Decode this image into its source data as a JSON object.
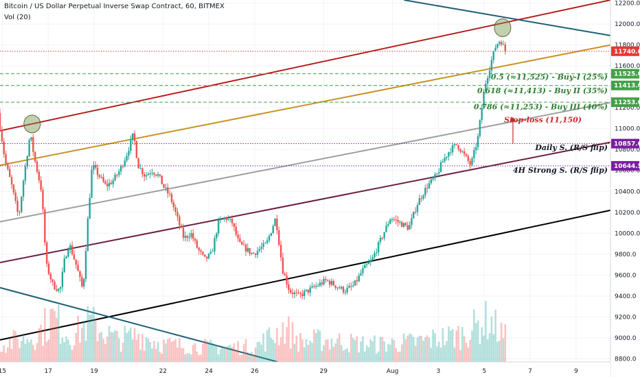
{
  "header": {
    "title": "Bitcoin / US Dollar Perpetual Inverse Swap Contract, 60, BITMEX",
    "volume_label": "Vol (20)"
  },
  "chart_data": {
    "type": "candlestick",
    "y_axis": {
      "range": [
        8770,
        12230
      ],
      "ticks": [
        12200,
        12000,
        11800,
        11600,
        11400,
        11200,
        11000,
        10800,
        10600,
        10400,
        10200,
        10000,
        9800,
        9600,
        9400,
        9200,
        9000,
        8800
      ],
      "tick_labels": [
        "12200.0",
        "12000.0",
        "11800.0",
        "11600.0",
        "11400.0",
        "11200.0",
        "11000.0",
        "10800.0",
        "10600.0",
        "10400.0",
        "10200.0",
        "10000.0",
        "9800.0",
        "9600.0",
        "9400.0",
        "9200.0",
        "9000.0",
        "8800.0"
      ]
    },
    "x_axis": {
      "range": [
        14.9,
        41.5
      ],
      "ticks": [
        {
          "t": 15,
          "label": "15"
        },
        {
          "t": 17,
          "label": "17"
        },
        {
          "t": 19,
          "label": "19"
        },
        {
          "t": 22,
          "label": "22"
        },
        {
          "t": 24,
          "label": "24"
        },
        {
          "t": 26,
          "label": "26"
        },
        {
          "t": 29,
          "label": "29"
        },
        {
          "t": 32,
          "label": "Aug"
        },
        {
          "t": 34,
          "label": "3"
        },
        {
          "t": 36,
          "label": "5"
        },
        {
          "t": 38,
          "label": "7"
        },
        {
          "t": 40,
          "label": "9"
        }
      ]
    },
    "price_path": [
      [
        14.9,
        11150
      ],
      [
        15.2,
        10700
      ],
      [
        15.5,
        10450
      ],
      [
        15.8,
        10150
      ],
      [
        16.0,
        10500
      ],
      [
        16.3,
        10950
      ],
      [
        16.5,
        10700
      ],
      [
        16.8,
        10400
      ],
      [
        17.0,
        9700
      ],
      [
        17.3,
        9500
      ],
      [
        17.6,
        9450
      ],
      [
        17.8,
        9750
      ],
      [
        18.0,
        9900
      ],
      [
        18.3,
        9700
      ],
      [
        18.6,
        9450
      ],
      [
        18.8,
        10100
      ],
      [
        19.0,
        10650
      ],
      [
        19.3,
        10550
      ],
      [
        19.6,
        10450
      ],
      [
        19.9,
        10500
      ],
      [
        20.2,
        10600
      ],
      [
        20.5,
        10750
      ],
      [
        20.8,
        10950
      ],
      [
        21.0,
        10650
      ],
      [
        21.3,
        10550
      ],
      [
        21.6,
        10600
      ],
      [
        21.9,
        10550
      ],
      [
        22.1,
        10450
      ],
      [
        22.4,
        10350
      ],
      [
        22.7,
        10150
      ],
      [
        23.0,
        9950
      ],
      [
        23.3,
        10000
      ],
      [
        23.6,
        9850
      ],
      [
        23.9,
        9750
      ],
      [
        24.2,
        9800
      ],
      [
        24.5,
        10100
      ],
      [
        24.8,
        10150
      ],
      [
        25.1,
        10100
      ],
      [
        25.4,
        9900
      ],
      [
        25.7,
        9850
      ],
      [
        26.0,
        9800
      ],
      [
        26.3,
        9850
      ],
      [
        26.6,
        9900
      ],
      [
        27.0,
        10150
      ],
      [
        27.3,
        9650
      ],
      [
        27.6,
        9450
      ],
      [
        28.0,
        9400
      ],
      [
        28.4,
        9450
      ],
      [
        28.8,
        9500
      ],
      [
        29.2,
        9550
      ],
      [
        29.6,
        9500
      ],
      [
        30.0,
        9450
      ],
      [
        30.4,
        9500
      ],
      [
        30.8,
        9650
      ],
      [
        31.2,
        9750
      ],
      [
        31.6,
        9950
      ],
      [
        32.0,
        10150
      ],
      [
        32.4,
        10100
      ],
      [
        32.8,
        10050
      ],
      [
        33.2,
        10300
      ],
      [
        33.6,
        10450
      ],
      [
        34.0,
        10550
      ],
      [
        34.3,
        10700
      ],
      [
        34.6,
        10800
      ],
      [
        34.9,
        10850
      ],
      [
        35.2,
        10750
      ],
      [
        35.5,
        10650
      ],
      [
        35.8,
        10900
      ],
      [
        36.1,
        11400
      ],
      [
        36.4,
        11650
      ],
      [
        36.6,
        11800
      ],
      [
        36.8,
        11850
      ],
      [
        37.0,
        11740
      ]
    ],
    "volume_profile": [
      [
        14.9,
        0.35
      ],
      [
        16.5,
        0.55
      ],
      [
        17.2,
        0.9
      ],
      [
        18.0,
        0.5
      ],
      [
        18.8,
        0.8
      ],
      [
        20.0,
        0.45
      ],
      [
        21.0,
        0.55
      ],
      [
        22.0,
        0.35
      ],
      [
        24.0,
        0.3
      ],
      [
        26.0,
        0.3
      ],
      [
        27.3,
        0.7
      ],
      [
        28.0,
        0.4
      ],
      [
        29.0,
        0.45
      ],
      [
        31.0,
        0.35
      ],
      [
        33.0,
        0.4
      ],
      [
        35.0,
        0.55
      ],
      [
        36.2,
        0.85
      ],
      [
        37.0,
        0.45
      ]
    ],
    "trend_lines": [
      {
        "color": "#b71c1c",
        "points": [
          [
            14.9,
            10980
          ],
          [
            41.5,
            12230
          ]
        ]
      },
      {
        "color": "#c99220",
        "points": [
          [
            14.9,
            10650
          ],
          [
            41.5,
            11800
          ]
        ]
      },
      {
        "color": "#9e9e9e",
        "points": [
          [
            14.9,
            10110
          ],
          [
            41.5,
            11250
          ]
        ]
      },
      {
        "color": "#6b1d3e",
        "points": [
          [
            14.9,
            9720
          ],
          [
            41.5,
            10870
          ]
        ]
      },
      {
        "color": "#000000",
        "points": [
          [
            14.9,
            8980
          ],
          [
            41.5,
            10220
          ]
        ]
      },
      {
        "color": "#1f5f74",
        "points": [
          [
            14.9,
            9480
          ],
          [
            27.0,
            8770
          ]
        ]
      },
      {
        "color": "#1f5f74",
        "points": [
          [
            32.5,
            12230
          ],
          [
            41.5,
            11890
          ]
        ]
      }
    ],
    "levels": [
      {
        "value": 11740,
        "label": "11740.0",
        "style": "dotted",
        "color": "#e53935"
      },
      {
        "value": 11525,
        "label": "11525.0",
        "style": "dashed",
        "color": "#43a047"
      },
      {
        "value": 11413,
        "label": "11413.0",
        "style": "dashed",
        "color": "#43a047"
      },
      {
        "value": 11253,
        "label": "11253.0",
        "style": "dashed",
        "color": "#43a047"
      },
      {
        "value": 10857,
        "label": "10857.0",
        "style": "dotted",
        "color": "#7b1fa2"
      },
      {
        "value": 10644.5,
        "label": "10644.5",
        "style": "dotted",
        "color": "#7b1fa2"
      }
    ],
    "annotations": [
      {
        "text": "0.5 (≈11,525) - Buy-I (25%)",
        "price": 11470,
        "color": "#2e7d32"
      },
      {
        "text": "0.618 (≈11,413) - Buy II (35%)",
        "price": 11340,
        "color": "#2e7d32"
      },
      {
        "text": "0.786 (≈11,253) - Buy III (40%)",
        "price": 11185,
        "color": "#2e7d32"
      },
      {
        "text": "Stop-loss (11,150)",
        "price": 11060,
        "color": "#c62828"
      },
      {
        "text": "Daily S. (R/S flip)",
        "price": 10795,
        "color": "#131722"
      },
      {
        "text": "4H Strong S. (R/S flip)",
        "price": 10580,
        "color": "#131722"
      }
    ],
    "highlight_circles": [
      {
        "t": 16.3,
        "price": 11045
      },
      {
        "t": 36.8,
        "price": 11965
      }
    ],
    "stop_arrow": {
      "t": 37.25,
      "from": 10857,
      "to": 11110
    }
  }
}
